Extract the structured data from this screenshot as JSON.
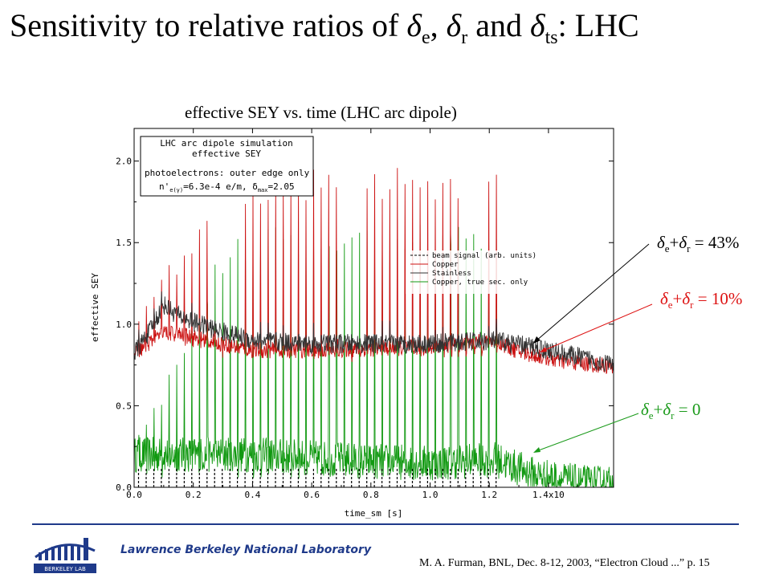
{
  "slide": {
    "title_prefix": "Sensitivity to relative ratios of ",
    "delta": "δ",
    "sub_e": "e",
    "sep1": ", ",
    "sub_r": "r",
    "sep2": " and ",
    "sub_ts": "ts",
    "title_suffix": ": LHC"
  },
  "annotations": [
    {
      "delta": "δ",
      "s1": "e",
      "plus": "+",
      "delta2": "δ",
      "s2": "r",
      "eq": " = 43%",
      "color": "#000000"
    },
    {
      "delta": "δ",
      "s1": "e",
      "plus": "+",
      "delta2": "δ",
      "s2": "r",
      "eq": " = 10%",
      "color": "#dd1111"
    },
    {
      "delta": "δ",
      "s1": "e",
      "plus": "+",
      "delta2": "δ",
      "s2": "r",
      "eq": " = 0",
      "color": "#1a9a1a"
    }
  ],
  "footer": {
    "lab": "Lawrence Berkeley National Laboratory",
    "citation": "M. A. Furman, BNL, Dec. 8-12, 2003, “Electron Cloud ...”  p. 15"
  },
  "chart_data": {
    "type": "line",
    "title": "effective SEY vs. time (LHC arc dipole)",
    "xlabel": "time_sm [s]",
    "ylabel": "effective SEY",
    "xlim": [
      0,
      1.62
    ],
    "ylim": [
      0,
      2.2
    ],
    "x_ticks": [
      "0.0",
      "0.2",
      "0.4",
      "0.6",
      "0.8",
      "1.0",
      "1.2",
      "1.4x10"
    ],
    "x_tick_values": [
      0,
      0.2,
      0.4,
      0.6,
      0.8,
      1.0,
      1.2,
      1.4
    ],
    "y_ticks": [
      "0.0",
      "0.5",
      "1.0",
      "1.5",
      "2.0"
    ],
    "y_tick_values": [
      0,
      0.5,
      1.0,
      1.5,
      2.0
    ],
    "info_box": {
      "line1": "LHC arc dipole simulation",
      "line2": "effective SEY",
      "line3": "photoelectrons: outer edge only",
      "line4_a": "n'",
      "line4_sub1": "e(γ)",
      "line4_b": "=6.3e-4 e/m,  δ",
      "line4_sub2": "max",
      "line4_c": "=2.05"
    },
    "legend_position": "center-right",
    "series": [
      {
        "name": "beam signal (arb. units)",
        "color": "#000000",
        "style": "dashed"
      },
      {
        "name": "Copper",
        "color": "#cc1111",
        "style": "solid",
        "envelope": [
          [
            0.0,
            0.82
          ],
          [
            0.1,
            0.95
          ],
          [
            0.2,
            0.92
          ],
          [
            0.3,
            0.88
          ],
          [
            0.4,
            0.84
          ],
          [
            0.6,
            0.84
          ],
          [
            0.8,
            0.85
          ],
          [
            1.0,
            0.86
          ],
          [
            1.22,
            0.9
          ],
          [
            1.3,
            0.83
          ],
          [
            1.45,
            0.77
          ],
          [
            1.62,
            0.74
          ]
        ],
        "peaks": [
          [
            0.0,
            1.05
          ],
          [
            0.08,
            1.25
          ],
          [
            0.18,
            1.55
          ],
          [
            0.28,
            1.75
          ],
          [
            0.4,
            1.9
          ],
          [
            0.55,
            1.95
          ],
          [
            0.75,
            1.96
          ],
          [
            0.95,
            1.96
          ],
          [
            1.15,
            1.96
          ],
          [
            1.24,
            1.95
          ]
        ]
      },
      {
        "name": "Stainless",
        "color": "#333333",
        "style": "solid",
        "envelope": [
          [
            0.0,
            0.82
          ],
          [
            0.05,
            0.95
          ],
          [
            0.1,
            1.12
          ],
          [
            0.15,
            1.05
          ],
          [
            0.25,
            0.98
          ],
          [
            0.4,
            0.9
          ],
          [
            0.6,
            0.88
          ],
          [
            0.8,
            0.88
          ],
          [
            1.0,
            0.88
          ],
          [
            1.22,
            0.9
          ],
          [
            1.35,
            0.86
          ],
          [
            1.5,
            0.8
          ],
          [
            1.62,
            0.75
          ]
        ]
      },
      {
        "name": "Copper, true sec. only",
        "color": "#119911",
        "style": "solid",
        "envelope": [
          [
            0.0,
            0.2
          ],
          [
            0.2,
            0.2
          ],
          [
            0.4,
            0.2
          ],
          [
            0.6,
            0.18
          ],
          [
            0.8,
            0.16
          ],
          [
            1.0,
            0.15
          ],
          [
            1.22,
            0.17
          ],
          [
            1.35,
            0.08
          ],
          [
            1.5,
            0.03
          ],
          [
            1.62,
            0.02
          ]
        ],
        "peaks": [
          [
            0.0,
            0.32
          ],
          [
            0.1,
            0.6
          ],
          [
            0.2,
            1.1
          ],
          [
            0.3,
            1.5
          ],
          [
            0.4,
            1.6
          ],
          [
            0.6,
            1.62
          ],
          [
            0.8,
            1.62
          ],
          [
            1.0,
            1.62
          ],
          [
            1.24,
            1.62
          ]
        ]
      }
    ],
    "beam_train": {
      "start": 0.015,
      "end": 1.245,
      "period": 0.0257
    },
    "noise_step": 0.0016
  }
}
